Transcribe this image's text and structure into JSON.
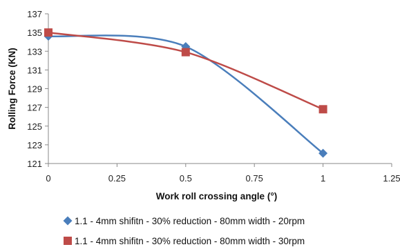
{
  "chart_data": {
    "type": "line",
    "title": "",
    "xlabel": "Work roll crossing angle (°)",
    "ylabel": "Rolling Force (KN)",
    "xlim": [
      0,
      1.25
    ],
    "ylim": [
      121,
      137
    ],
    "xticks": [
      0,
      0.25,
      0.5,
      0.75,
      1,
      1.25
    ],
    "xtick_labels": [
      "0",
      "0.25",
      "0.5",
      "0.75",
      "1",
      "1.25"
    ],
    "yticks": [
      121,
      123,
      125,
      127,
      129,
      131,
      133,
      135,
      137
    ],
    "ytick_labels": [
      "121",
      "123",
      "125",
      "127",
      "129",
      "131",
      "133",
      "135",
      "137"
    ],
    "grid": false,
    "smooth": true,
    "legend_position": "bottom",
    "series": [
      {
        "name": "1.1 - 4mm shifitn - 30% reduction - 80mm width - 20rpm",
        "color": "#4a7ebb",
        "marker": "diamond",
        "x": [
          0,
          0.5,
          1
        ],
        "y": [
          134.6,
          133.5,
          122.1
        ]
      },
      {
        "name": "1.1 - 4mm shifitn - 30% reduction - 80mm width - 30rpm",
        "color": "#be4b48",
        "marker": "square",
        "x": [
          0,
          0.5,
          1
        ],
        "y": [
          135.0,
          132.9,
          126.8
        ]
      }
    ]
  }
}
